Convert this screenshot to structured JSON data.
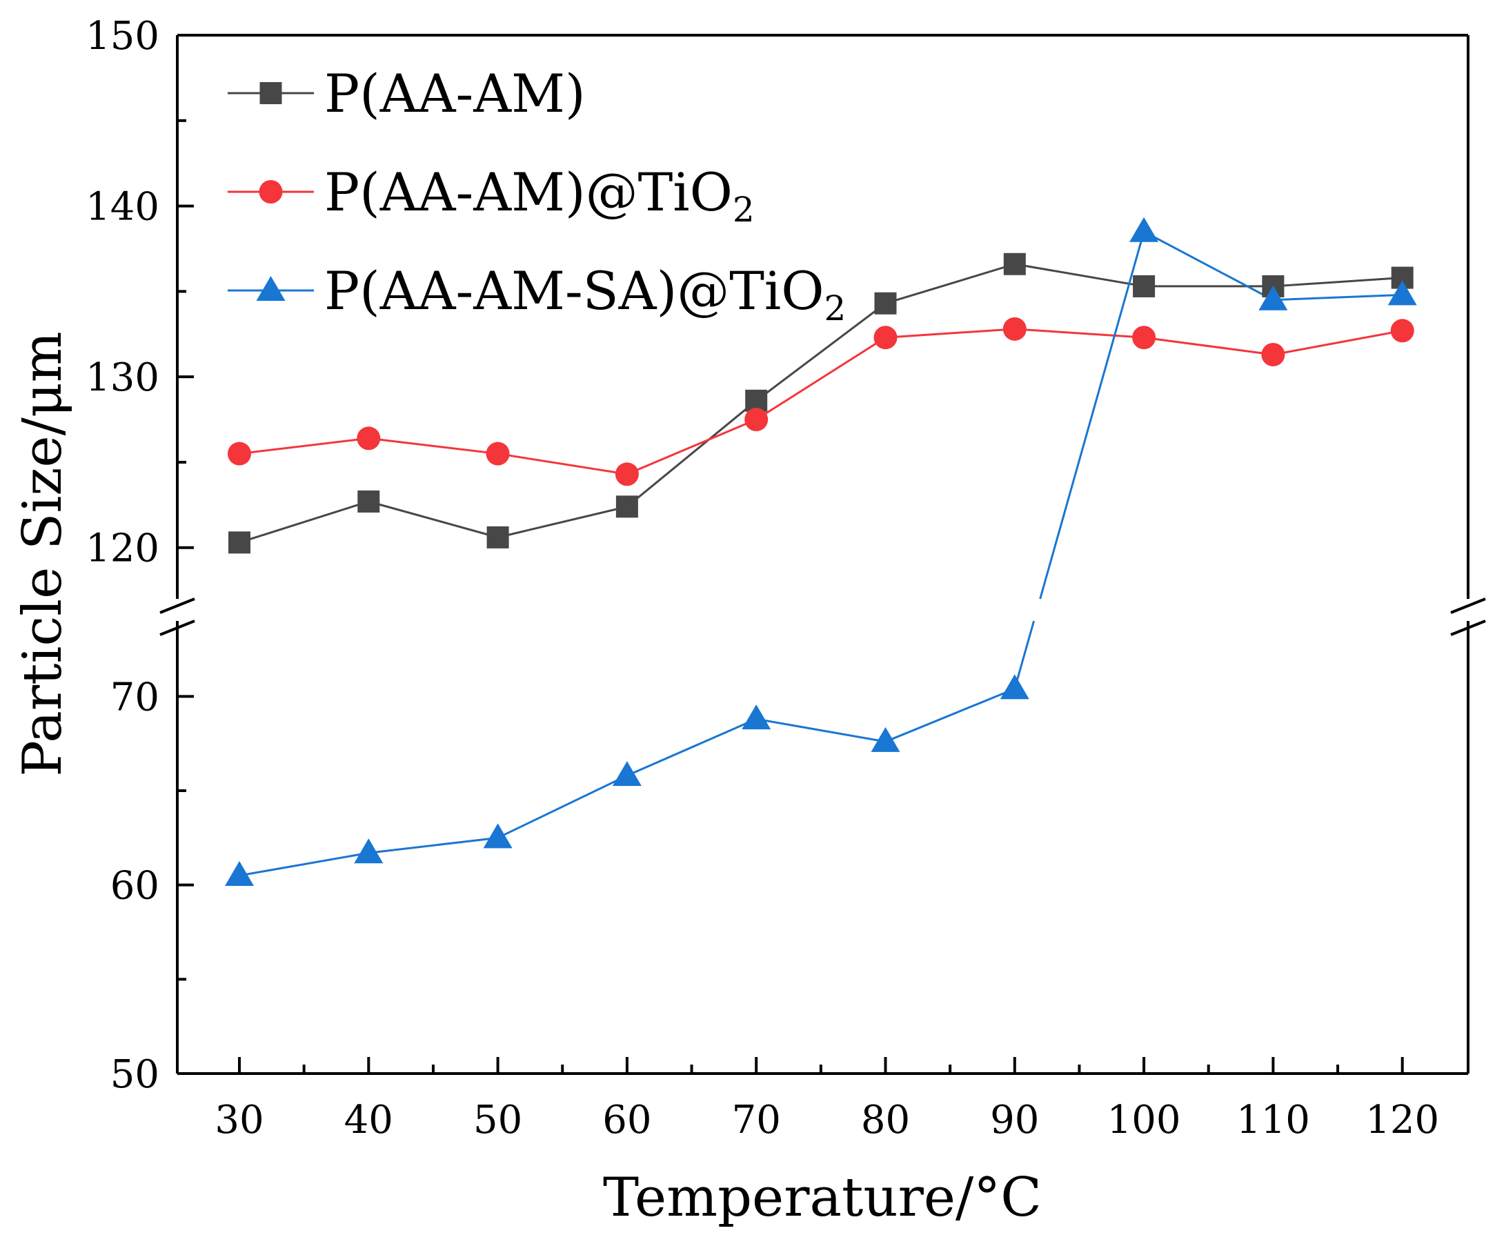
{
  "chart_data": {
    "type": "line",
    "title": "",
    "xlabel": "Temperature/°C",
    "ylabel": "Particle Size/μm",
    "x": [
      30,
      40,
      50,
      60,
      70,
      80,
      90,
      100,
      110,
      120
    ],
    "x_ticks": [
      "30",
      "40",
      "50",
      "60",
      "70",
      "80",
      "90",
      "100",
      "110",
      "120"
    ],
    "y_ticks_upper": [
      "120",
      "130",
      "140",
      "150"
    ],
    "y_ticks_lower": [
      "50",
      "60",
      "70"
    ],
    "y_upper_range": [
      117,
      150
    ],
    "y_lower_range": [
      50,
      74
    ],
    "axis_break": true,
    "legend_position": "top-left",
    "series": [
      {
        "name": "P(AA-AM)",
        "legend_main": "P(AA-AM)",
        "legend_sub": "",
        "marker": "square",
        "color": "#474747",
        "values": [
          120.3,
          122.7,
          120.6,
          122.4,
          128.6,
          134.3,
          136.6,
          135.3,
          135.3,
          135.8
        ]
      },
      {
        "name": "P(AA-AM)@TiO2",
        "legend_main": "P(AA-AM)@TiO",
        "legend_sub": "2",
        "marker": "circle",
        "color": "#f4353a",
        "values": [
          125.5,
          126.4,
          125.5,
          124.3,
          127.5,
          132.3,
          132.8,
          132.3,
          131.3,
          132.7
        ]
      },
      {
        "name": "P(AA-AM-SA)@TiO2",
        "legend_main": "P(AA-AM-SA)@TiO",
        "legend_sub": "2",
        "marker": "triangle",
        "color": "#1976d2",
        "values": [
          60.5,
          61.7,
          62.5,
          65.8,
          68.8,
          67.6,
          70.4,
          138.5,
          134.5,
          134.8
        ]
      }
    ]
  }
}
